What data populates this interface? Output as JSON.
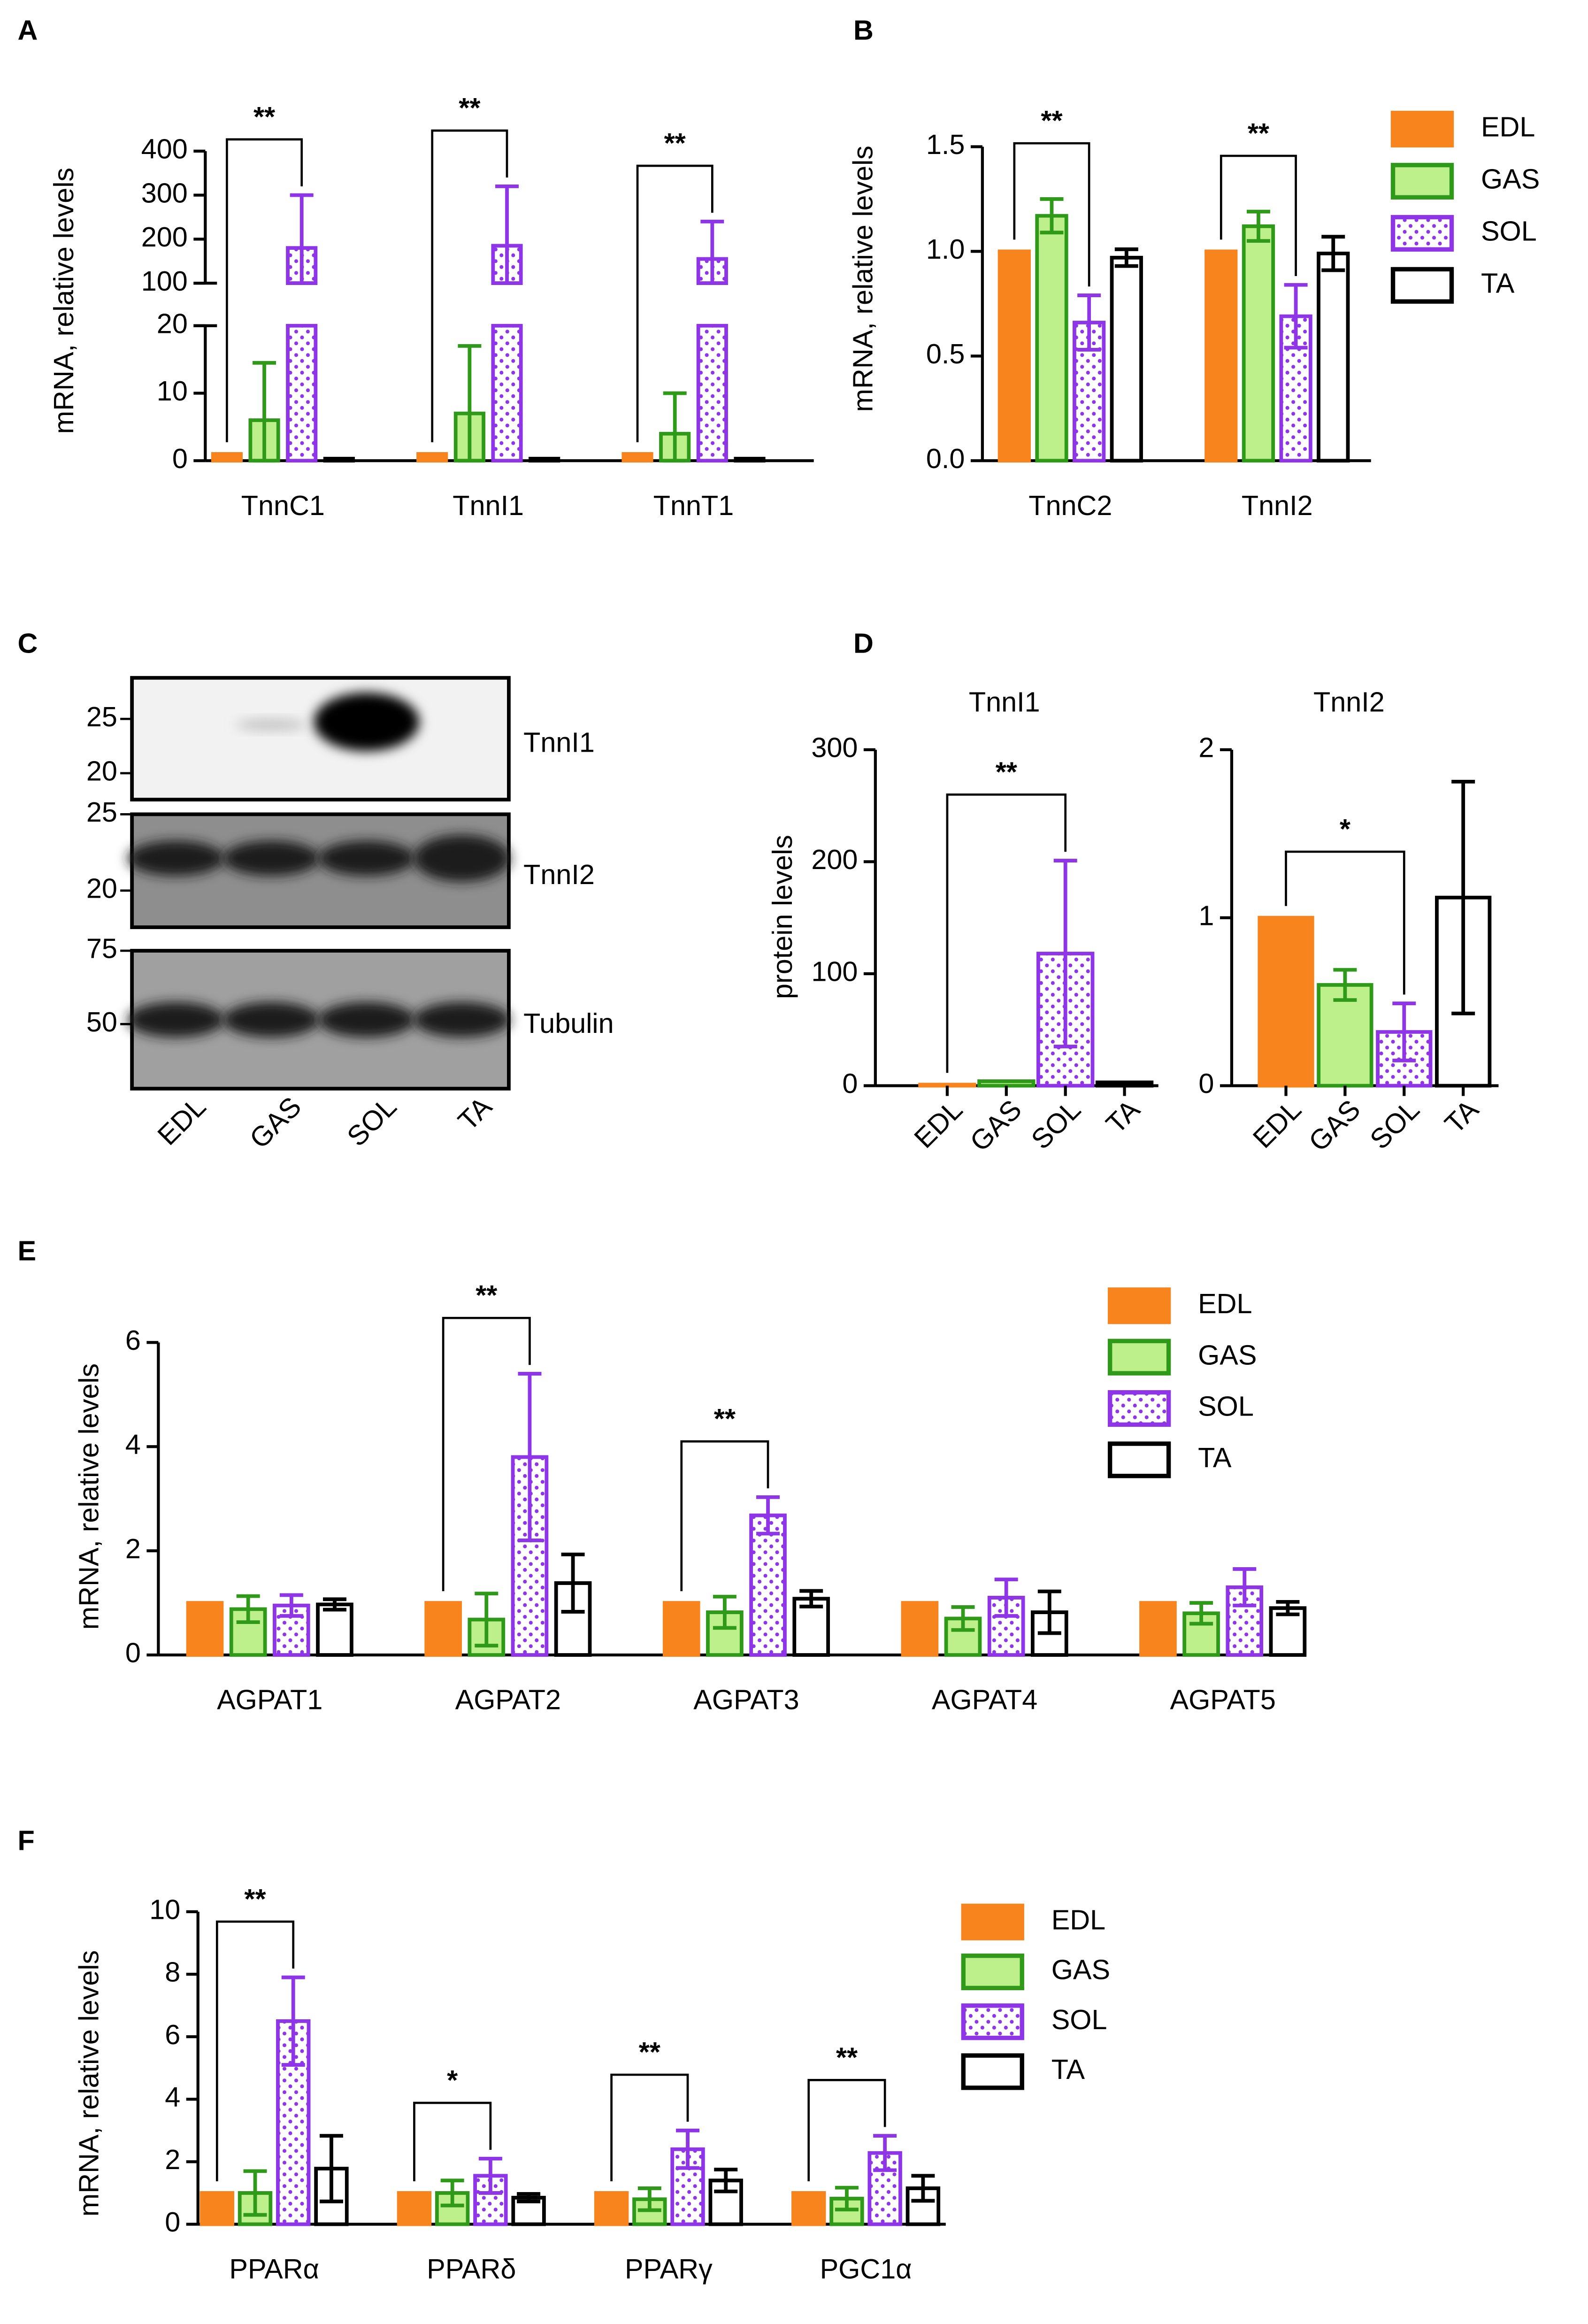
{
  "chart_data": [
    {
      "panel": "A",
      "type": "bar",
      "ylabel": "mRNA, relative levels",
      "categories": [
        "TnnC1",
        "TnnI1",
        "TnnT1"
      ],
      "series": [
        {
          "color": "#f7841c",
          "fill": "#f7841c",
          "values": [
            1,
            1,
            1
          ]
        },
        {
          "color": "#2f9a1a",
          "fill": "#bdf08a",
          "values": [
            6,
            7,
            4
          ],
          "errors": [
            8.5,
            10,
            6
          ]
        },
        {
          "color": "#8f35e8",
          "fill": "dots",
          "values": [
            180,
            185,
            155
          ],
          "errors": [
            120,
            135,
            85
          ]
        },
        {
          "color": "#000000",
          "fill": "#ffffff",
          "values": [
            0.3,
            0.3,
            0.3
          ]
        }
      ],
      "ylim": [
        0,
        400
      ],
      "ybreak": [
        20,
        100
      ],
      "yticks": [
        0,
        10,
        20,
        100,
        200,
        300,
        400
      ],
      "annotations": [
        "**",
        "**",
        "**"
      ]
    },
    {
      "panel": "B",
      "type": "bar",
      "ylabel": "mRNA, relative levels",
      "categories": [
        "TnnC2",
        "TnnI2"
      ],
      "series": [
        {
          "name": "EDL",
          "color": "#f7841c",
          "fill": "#f7841c",
          "values": [
            1,
            1
          ]
        },
        {
          "name": "GAS",
          "color": "#2f9a1a",
          "fill": "#bdf08a",
          "values": [
            1.17,
            1.12
          ],
          "errors": [
            0.08,
            0.07
          ]
        },
        {
          "name": "SOL",
          "color": "#8f35e8",
          "fill": "dots",
          "values": [
            0.66,
            0.69
          ],
          "errors": [
            0.13,
            0.15
          ]
        },
        {
          "name": "TA",
          "color": "#000000",
          "fill": "#ffffff",
          "values": [
            0.97,
            0.99
          ],
          "errors": [
            0.04,
            0.08
          ]
        }
      ],
      "ylim": [
        0,
        1.5
      ],
      "yticks": [
        {
          "value": 0,
          "label": "0.0"
        },
        {
          "value": 0.5,
          "label": "0.5"
        },
        {
          "value": 1,
          "label": "1.0"
        },
        {
          "value": 1.5,
          "label": "1.5"
        }
      ],
      "annotations": [
        "**",
        "**"
      ],
      "legend": "right"
    },
    {
      "panel": "C",
      "type": "blot",
      "lanes": [
        "EDL",
        "GAS",
        "SOL",
        "TA"
      ],
      "blots": [
        {
          "label": "TnnI1",
          "markers": [
            25,
            20
          ]
        },
        {
          "label": "TnnI2",
          "markers": [
            25,
            20
          ]
        },
        {
          "label": "Tubulin",
          "markers": [
            75,
            50
          ]
        }
      ]
    },
    {
      "panel": "D",
      "type": "bar",
      "title": "TnnI1",
      "ylabel": "protein levels",
      "categories": [
        "EDL",
        "GAS",
        "SOL",
        "TA"
      ],
      "values": [
        1,
        4,
        118,
        3
      ],
      "errors": [
        null,
        null,
        83,
        null
      ],
      "colors": [
        "#f7841c",
        "#2f9a1a",
        "#8f35e8",
        "#000000"
      ],
      "fills": [
        "#f7841c",
        "#bdf08a",
        "dots",
        "#ffffff"
      ],
      "ylim": [
        0,
        300
      ],
      "yticks": [
        0,
        100,
        200,
        300
      ],
      "annotation": "**"
    },
    {
      "type": "bar",
      "title": "TnnI2",
      "categories": [
        "EDL",
        "GAS",
        "SOL",
        "TA"
      ],
      "values": [
        1,
        0.6,
        0.32,
        1.12
      ],
      "errors": [
        null,
        0.09,
        0.17,
        0.69
      ],
      "colors": [
        "#f7841c",
        "#2f9a1a",
        "#8f35e8",
        "#000000"
      ],
      "fills": [
        "#f7841c",
        "#bdf08a",
        "dots",
        "#ffffff"
      ],
      "ylim": [
        0,
        2
      ],
      "yticks": [
        0,
        1,
        2
      ],
      "annotation": "*"
    },
    {
      "panel": "E",
      "type": "bar",
      "ylabel": "mRNA, relative levels",
      "categories": [
        "AGPAT1",
        "AGPAT2",
        "AGPAT3",
        "AGPAT4",
        "AGPAT5"
      ],
      "series": [
        {
          "name": "EDL",
          "color": "#f7841c",
          "fill": "#f7841c",
          "values": [
            1,
            1,
            1,
            1,
            1
          ]
        },
        {
          "name": "GAS",
          "color": "#2f9a1a",
          "fill": "#bdf08a",
          "values": [
            0.88,
            0.68,
            0.82,
            0.7,
            0.8
          ],
          "errors": [
            0.25,
            0.5,
            0.3,
            0.22,
            0.2
          ]
        },
        {
          "name": "SOL",
          "color": "#8f35e8",
          "fill": "dots",
          "values": [
            0.95,
            3.8,
            2.68,
            1.1,
            1.3
          ],
          "errors": [
            0.2,
            1.6,
            0.35,
            0.35,
            0.35
          ]
        },
        {
          "name": "TA",
          "color": "#000000",
          "fill": "#ffffff",
          "values": [
            0.97,
            1.38,
            1.08,
            0.82,
            0.9
          ],
          "errors": [
            0.1,
            0.55,
            0.15,
            0.4,
            0.12
          ]
        }
      ],
      "ylim": [
        0,
        6
      ],
      "yticks": [
        0,
        2,
        4,
        6
      ],
      "annotations": [
        null,
        "**",
        "**",
        null,
        null
      ],
      "legend": "right"
    },
    {
      "panel": "F",
      "type": "bar",
      "ylabel": "mRNA, relative levels",
      "categories": [
        "PPARα",
        "PPARδ",
        "PPARγ",
        "PGC1α"
      ],
      "series": [
        {
          "name": "EDL",
          "color": "#f7841c",
          "fill": "#f7841c",
          "values": [
            1,
            1,
            1,
            1
          ]
        },
        {
          "name": "GAS",
          "color": "#2f9a1a",
          "fill": "#bdf08a",
          "values": [
            1,
            1,
            0.8,
            0.82
          ],
          "errors": [
            0.7,
            0.4,
            0.35,
            0.35
          ]
        },
        {
          "name": "SOL",
          "color": "#8f35e8",
          "fill": "dots",
          "values": [
            6.5,
            1.55,
            2.4,
            2.28
          ],
          "errors": [
            1.4,
            0.55,
            0.6,
            0.55
          ]
        },
        {
          "name": "TA",
          "color": "#000000",
          "fill": "#ffffff",
          "values": [
            1.78,
            0.85,
            1.4,
            1.15
          ],
          "errors": [
            1.05,
            0.12,
            0.35,
            0.4
          ]
        }
      ],
      "ylim": [
        0,
        10
      ],
      "yticks": [
        0,
        2,
        4,
        6,
        8,
        10
      ],
      "annotations": [
        "**",
        "*",
        "**",
        "**"
      ],
      "legend": "right"
    }
  ]
}
